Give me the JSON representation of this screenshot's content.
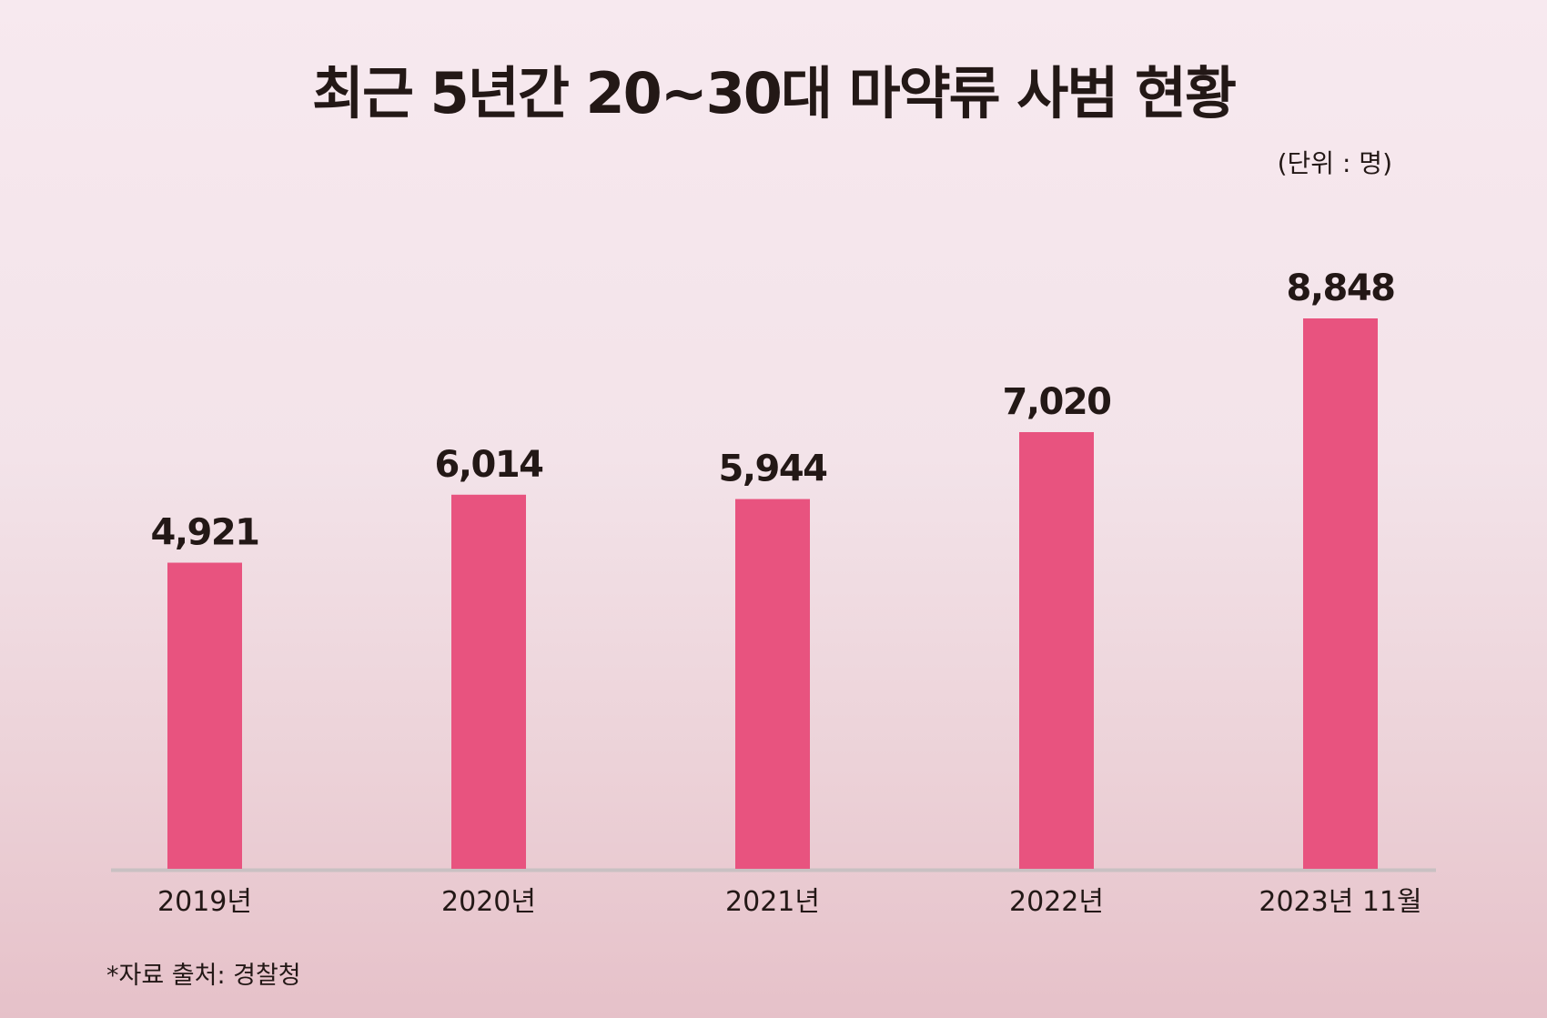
{
  "chart_data": {
    "type": "bar",
    "title": "최근 5년간 20~30대 마약류 사범 현황",
    "unit_label": "(단위 : 명)",
    "categories": [
      "2019년",
      "2020년",
      "2021년",
      "2022년",
      "2023년 11월"
    ],
    "values": [
      4921,
      6014,
      5944,
      7020,
      8848
    ],
    "value_labels": [
      "4,921",
      "6,014",
      "5,944",
      "7,020",
      "8,848"
    ],
    "xlabel": "",
    "ylabel": "",
    "grid": false,
    "legend": "none",
    "colors": {
      "bar": "#e8537f",
      "baseline": "#c9c0c2",
      "text": "#231816"
    }
  },
  "footnote": "*자료 출처: 경찰청"
}
